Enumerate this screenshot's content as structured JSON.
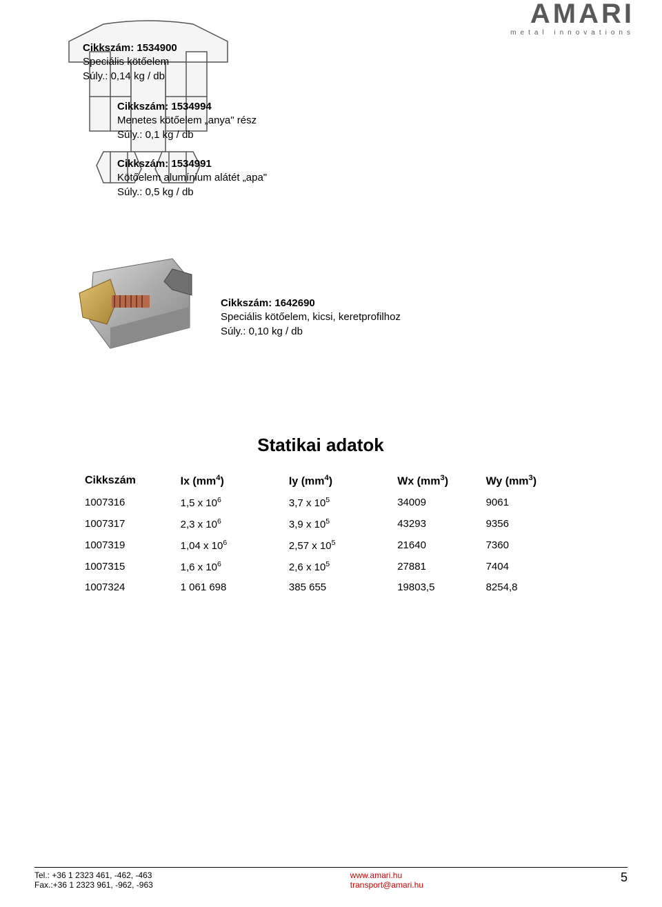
{
  "logo": {
    "text": "AMARI",
    "subtitle": "metal innovations"
  },
  "products": [
    {
      "code": "1534900",
      "name": "Speciális kötőelem",
      "weight": "0,14 kg / db"
    },
    {
      "code": "1534994",
      "name": "Menetes kötőelem „anya\" rész",
      "weight": "0,1 kg / db"
    },
    {
      "code": "1534991",
      "name": "Kötőelem alumínium alátét „apa\"",
      "weight": "0,5 kg / db"
    },
    {
      "code": "1642690",
      "name": "Speciális kötőelem, kicsi, keretprofilhoz",
      "weight": "0,10 kg / db"
    }
  ],
  "label_cikkszam": "Cikkszám:",
  "label_suly": "Súly.:",
  "statistics": {
    "title": "Statikai adatok",
    "columns": [
      "Cikkszám",
      "Ix (mm⁴)",
      "Iy (mm⁴)",
      "Wx (mm³)",
      "Wy (mm³)"
    ],
    "column_sup": [
      "",
      "4",
      "4",
      "3",
      "3"
    ],
    "column_base": [
      "Cikkszám",
      "Ix (mm",
      "Iy (mm",
      "Wx (mm",
      "Wy (mm"
    ],
    "rows": [
      [
        "1007316",
        "1,5 x 10",
        "3,7 x 10",
        "34009",
        "9061"
      ],
      [
        "1007317",
        "2,3 x 10",
        "3,9 x 10",
        "43293",
        "9356"
      ],
      [
        "1007319",
        "1,04 x 10",
        "2,57 x 10",
        "21640",
        "7360"
      ],
      [
        "1007315",
        "1,6 x 10",
        "2,6 x 10",
        "27881",
        "7404"
      ],
      [
        "1007324",
        "1 061 698",
        "385 655",
        "19803,5",
        "8254,8"
      ]
    ],
    "row_sup": [
      [
        "",
        "6",
        "5",
        "",
        ""
      ],
      [
        "",
        "6",
        "5",
        "",
        ""
      ],
      [
        "",
        "6",
        "5",
        "",
        ""
      ],
      [
        "",
        "6",
        "5",
        "",
        ""
      ],
      [
        "",
        "",
        "",
        "",
        ""
      ]
    ]
  },
  "footer": {
    "tel_label": "Tel.:",
    "tel": "+36 1 2323 461, -462, -463",
    "fax_label": "Fax.:",
    "fax": "+36 1 2323 961, -962, -963",
    "www": "www.amari.hu",
    "email": "transport@amari.hu",
    "page": "5"
  },
  "colors": {
    "text": "#000000",
    "logo_gray": "#595959",
    "red": "#cc0000",
    "background": "#ffffff",
    "drawing_line": "#555555",
    "metal1": "#b8b8b8",
    "metal2": "#999999",
    "brass": "#c9a34a",
    "copper": "#b66a4a"
  }
}
